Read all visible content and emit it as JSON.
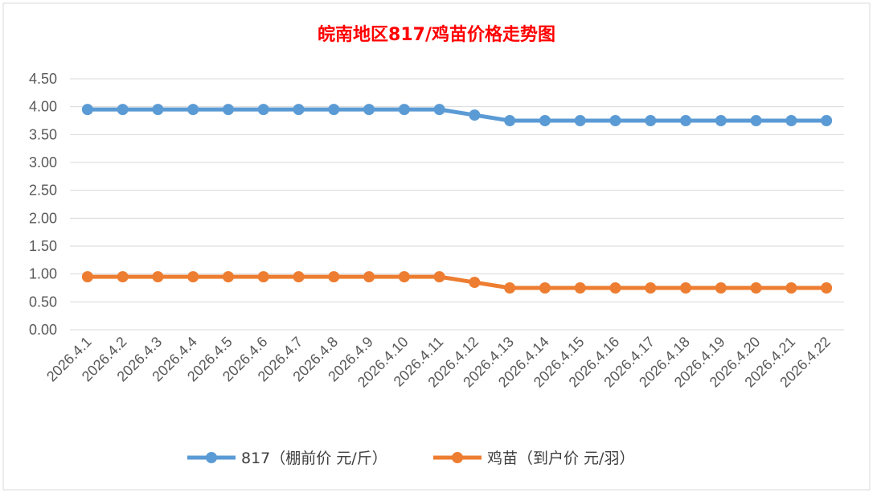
{
  "chart_data": {
    "type": "line",
    "title": "皖南地区817/鸡苗价格走势图",
    "title_color": "#ff0000",
    "xlabel": "",
    "ylabel": "",
    "ylim": [
      0,
      4.5
    ],
    "yticks": [
      "0.00",
      "0.50",
      "1.00",
      "1.50",
      "2.00",
      "2.50",
      "3.00",
      "3.50",
      "4.00",
      "4.50"
    ],
    "grid": true,
    "legend_position": "bottom",
    "categories": [
      "2026.4.1",
      "2026.4.2",
      "2026.4.3",
      "2026.4.4",
      "2026.4.5",
      "2026.4.6",
      "2026.4.7",
      "2026.4.8",
      "2026.4.9",
      "2026.4.10",
      "2026.4.11",
      "2026.4.12",
      "2026.4.13",
      "2026.4.14",
      "2026.4.15",
      "2026.4.16",
      "2026.4.17",
      "2026.4.18",
      "2026.4.19",
      "2026.4.20",
      "2026.4.21",
      "2026.4.22"
    ],
    "series": [
      {
        "name": "817（棚前价 元/斤）",
        "color": "#5b9bd5",
        "values": [
          3.95,
          3.95,
          3.95,
          3.95,
          3.95,
          3.95,
          3.95,
          3.95,
          3.95,
          3.95,
          3.95,
          3.85,
          3.75,
          3.75,
          3.75,
          3.75,
          3.75,
          3.75,
          3.75,
          3.75,
          3.75,
          3.75
        ]
      },
      {
        "name": "鸡苗（到户价 元/羽）",
        "color": "#ed7d31",
        "values": [
          0.95,
          0.95,
          0.95,
          0.95,
          0.95,
          0.95,
          0.95,
          0.95,
          0.95,
          0.95,
          0.95,
          0.85,
          0.75,
          0.75,
          0.75,
          0.75,
          0.75,
          0.75,
          0.75,
          0.75,
          0.75,
          0.75
        ]
      }
    ]
  }
}
